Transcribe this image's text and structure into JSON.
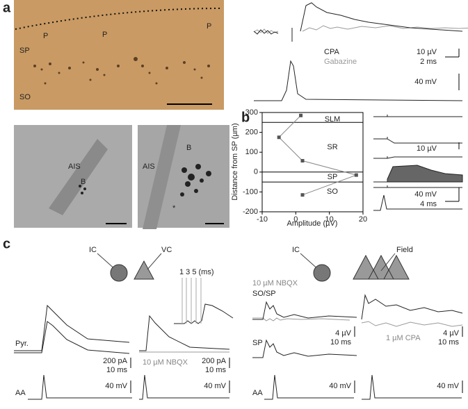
{
  "panel_labels": [
    "a",
    "b",
    "c"
  ],
  "panel_a": {
    "photo_labels": [
      "P",
      "P",
      "P",
      "SP",
      "SO"
    ],
    "em_labels": [
      "AIS",
      "B",
      "AIS",
      "B",
      "*"
    ],
    "trace_legend": [
      "CPA",
      "Gabazine"
    ],
    "scale_bars": [
      "10 µV",
      "2 ms",
      "40 mV"
    ]
  },
  "chart_data": {
    "type": "line",
    "xlabel": "Amplitude (µV)",
    "ylabel": "Distance from SP (µm)",
    "x": [
      1.5,
      -5,
      2,
      18,
      2
    ],
    "values": [
      285,
      175,
      57,
      -15,
      -115
    ],
    "color": "#555555",
    "xlim": [
      -10,
      20
    ],
    "xticks": [
      -10,
      0,
      10,
      20
    ],
    "ylim": [
      -200,
      300
    ],
    "yticks": [
      -200,
      -100,
      0,
      100,
      200,
      300
    ],
    "hlines": [
      250,
      0,
      -50
    ],
    "regions": [
      "SLM",
      "SR",
      "SP",
      "SO"
    ]
  },
  "panel_b": {
    "scale_bars": [
      "10 µV",
      "40 mV",
      "4 ms"
    ]
  },
  "panel_c": {
    "electrodes_left": [
      "IC",
      "VC"
    ],
    "inset_label": "1 3 5 (ms)",
    "row_labels": [
      "Pyr.",
      "AA"
    ],
    "nbqx_left": "10 µM NBQX",
    "scale_bars_left": [
      "200 pA",
      "10 ms",
      "200 pA",
      "10 ms",
      "40 mV",
      "40 mV"
    ],
    "electrodes_right": [
      "IC",
      "Field"
    ],
    "nbqx_right": "10 µM NBQX",
    "trace_labels": [
      "SO/SP",
      "SP",
      "AA"
    ],
    "cpa": "1 µM CPA",
    "scale_bars_right": [
      "4 µV",
      "10 ms",
      "4 µV",
      "10 ms",
      "40 mV",
      "40 mV"
    ]
  }
}
